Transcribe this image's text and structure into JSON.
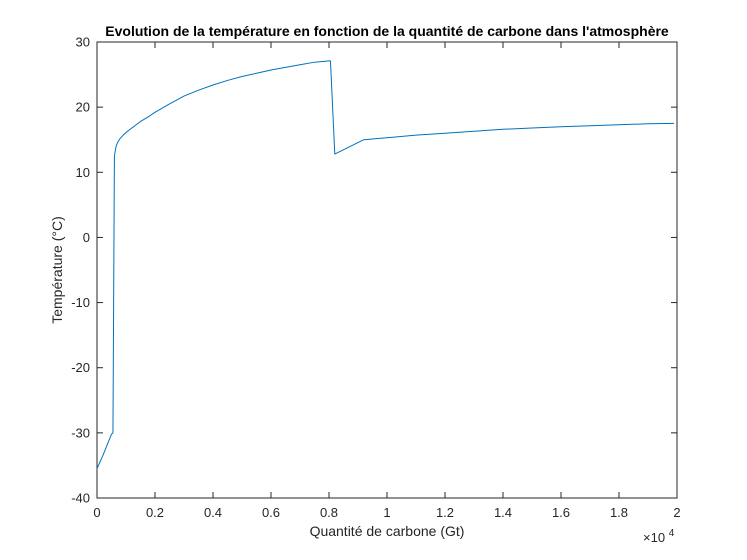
{
  "chart_data": {
    "type": "line",
    "title": "Evolution de la température en fonction de la  quantité de carbone dans l'atmosphère",
    "xlabel": "Quantité de carbone (Gt)",
    "ylabel": "Température (°C)",
    "x_exponent_label": "×10",
    "x_exponent_power": "4",
    "xlim": [
      0,
      20000
    ],
    "ylim": [
      -40,
      30
    ],
    "x_ticks": [
      0,
      2000,
      4000,
      6000,
      8000,
      10000,
      12000,
      14000,
      16000,
      18000,
      20000
    ],
    "x_tick_labels": [
      "0",
      "0.2",
      "0.4",
      "0.6",
      "0.8",
      "1",
      "1.2",
      "1.4",
      "1.6",
      "1.8",
      "2"
    ],
    "y_ticks": [
      -40,
      -30,
      -20,
      -10,
      0,
      10,
      20,
      30
    ],
    "y_tick_labels": [
      "-40",
      "-30",
      "-20",
      "-10",
      "0",
      "10",
      "20",
      "30"
    ],
    "grid": false,
    "line_color": "#0072BD",
    "series": [
      {
        "x": [
          0,
          200,
          500,
          550,
          600,
          650,
          700,
          800,
          900,
          1000,
          1200,
          1500,
          1800,
          2000,
          2500,
          3000,
          3500,
          4000,
          4500,
          5000,
          5500,
          6000,
          6500,
          7000,
          7500,
          8000,
          8050,
          8200,
          9200,
          10000,
          11000,
          12000,
          13000,
          14000,
          15000,
          16000,
          17000,
          18000,
          19000,
          19900
        ],
        "y": [
          -35.5,
          -33.5,
          -30.2,
          -30.0,
          12.5,
          13.8,
          14.5,
          15.2,
          15.7,
          16.1,
          16.8,
          17.8,
          18.6,
          19.2,
          20.5,
          21.7,
          22.6,
          23.4,
          24.1,
          24.7,
          25.2,
          25.7,
          26.1,
          26.5,
          26.9,
          27.1,
          27.1,
          12.8,
          15.0,
          15.3,
          15.7,
          16.0,
          16.3,
          16.6,
          16.8,
          17.0,
          17.15,
          17.3,
          17.45,
          17.5
        ]
      }
    ]
  }
}
